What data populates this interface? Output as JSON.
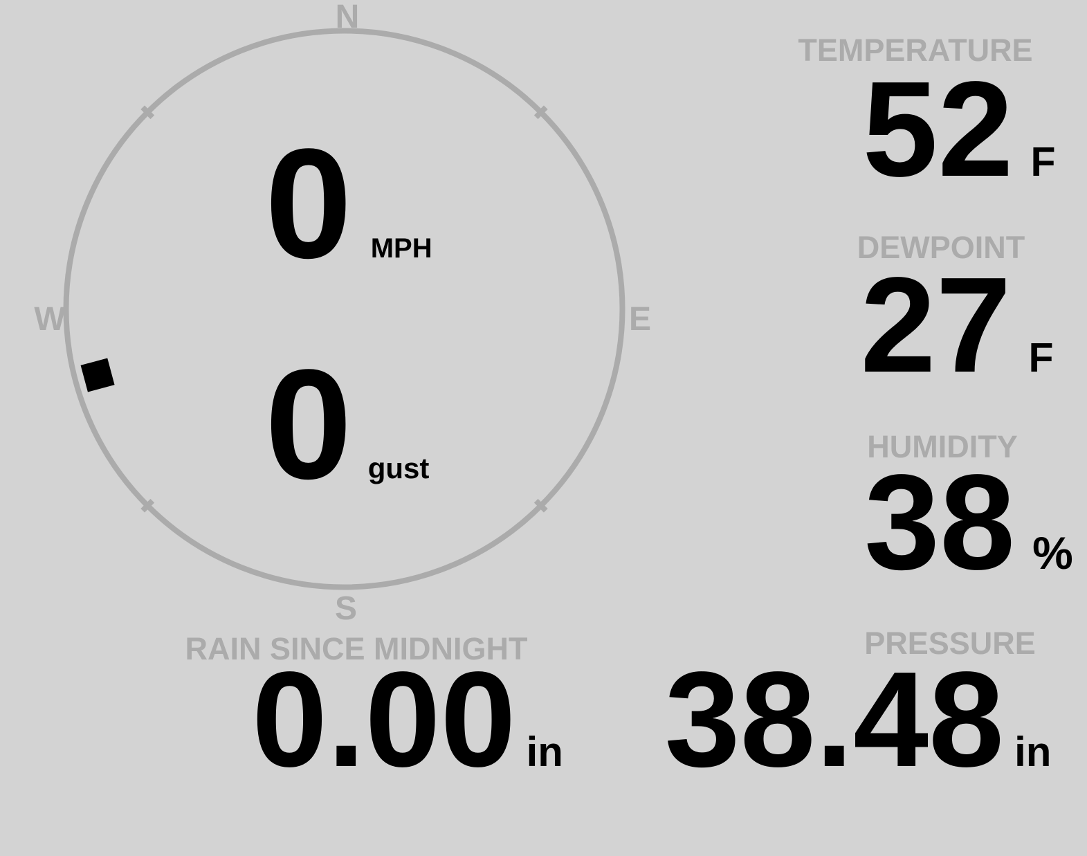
{
  "colors": {
    "background": "#d3d3d3",
    "muted": "#ababab",
    "ink": "#000000"
  },
  "wind": {
    "speed_value": "0",
    "speed_unit": "MPH",
    "gust_value": "0",
    "gust_unit": "gust",
    "direction_degrees": 255,
    "compass_labels": {
      "north": "N",
      "east": "E",
      "south": "S",
      "west": "W"
    }
  },
  "metrics": {
    "temperature": {
      "label": "TEMPERATURE",
      "value": "52",
      "unit": "F"
    },
    "dewpoint": {
      "label": "DEWPOINT",
      "value": "27",
      "unit": "F"
    },
    "humidity": {
      "label": "HUMIDITY",
      "value": "38",
      "unit": "%"
    },
    "rain_since_midnight": {
      "label": "RAIN SINCE MIDNIGHT",
      "value": "0.00",
      "unit": "in"
    },
    "pressure": {
      "label": "PRESSURE",
      "value": "38.48",
      "unit": "in"
    }
  }
}
